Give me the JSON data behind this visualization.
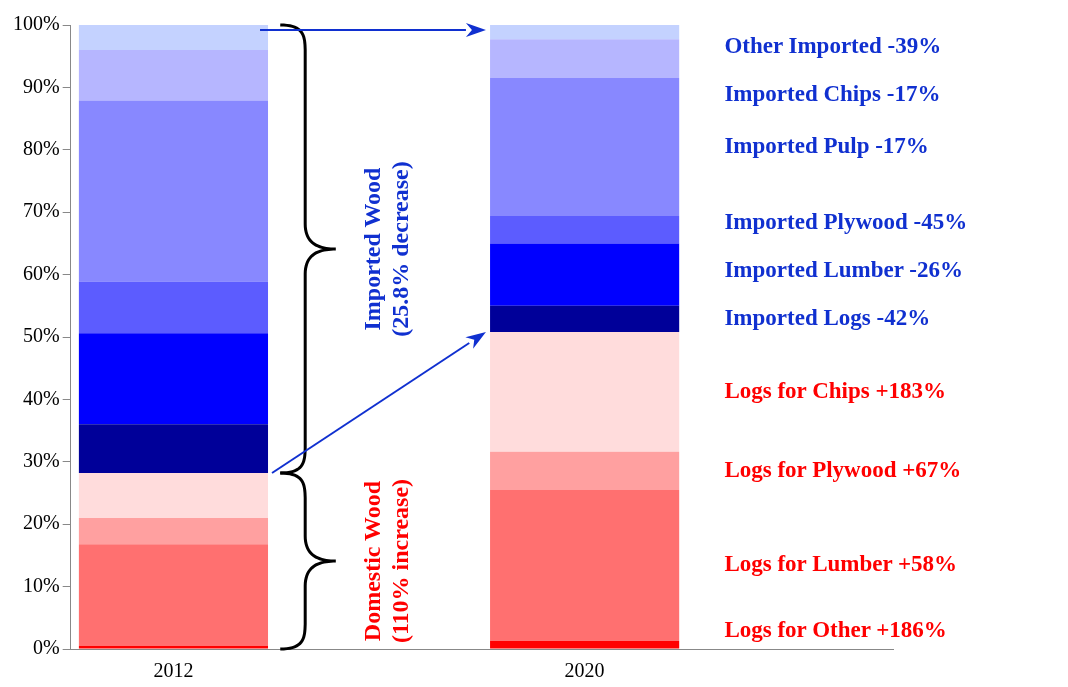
{
  "chart_data": {
    "type": "bar",
    "stacked": true,
    "categories": [
      "2012",
      null,
      "2020",
      null
    ],
    "ylim": [
      0,
      100
    ],
    "yticks": [
      {
        "value": 0,
        "label": "0%"
      },
      {
        "value": 10,
        "label": "10%"
      },
      {
        "value": 20,
        "label": "20%"
      },
      {
        "value": 30,
        "label": "30%"
      },
      {
        "value": 40,
        "label": "40%"
      },
      {
        "value": 50,
        "label": "50%"
      },
      {
        "value": 60,
        "label": "60%"
      },
      {
        "value": 70,
        "label": "70%"
      },
      {
        "value": 80,
        "label": "80%"
      },
      {
        "value": 90,
        "label": "90%"
      },
      {
        "value": 100,
        "label": "100%"
      }
    ],
    "grid": false,
    "legend": false,
    "series": [
      {
        "name": "Logs for Other +186%",
        "color": "#ff0000",
        "values": [
          0.5,
          null,
          1.3,
          null
        ]
      },
      {
        "name": "Logs for Lumber +58%",
        "color": "#ff7070",
        "values": [
          16.3,
          null,
          24.2,
          null
        ]
      },
      {
        "name": "Logs for Plywood +67%",
        "color": "#ffa0a0",
        "values": [
          4.2,
          null,
          6.1,
          null
        ]
      },
      {
        "name": "Logs for Chips +183%",
        "color": "#ffdcdc",
        "values": [
          7.2,
          null,
          19.2,
          null
        ]
      },
      {
        "name": "Imported Logs -42%",
        "color": "#000099",
        "values": [
          7.8,
          null,
          4.2,
          null
        ]
      },
      {
        "name": "Imported Lumber -26%",
        "color": "#0000ff",
        "values": [
          14.6,
          null,
          10.0,
          null
        ]
      },
      {
        "name": "Imported Plywood -45%",
        "color": "#5c5cff",
        "values": [
          8.3,
          null,
          4.4,
          null
        ]
      },
      {
        "name": "Imported Pulp -17%",
        "color": "#8888ff",
        "values": [
          29.0,
          null,
          22.1,
          null
        ]
      },
      {
        "name": "Imported Chips -17%",
        "color": "#b6b6ff",
        "values": [
          8.1,
          null,
          6.2,
          null
        ]
      },
      {
        "name": "Other Imported -39%",
        "color": "#c4d2ff",
        "values": [
          4.0,
          null,
          2.3,
          null
        ]
      }
    ],
    "annotations": [
      "Imported Wood\n(25.8% decrease)",
      "Domestic Wood\n(110% increase)"
    ]
  }
}
